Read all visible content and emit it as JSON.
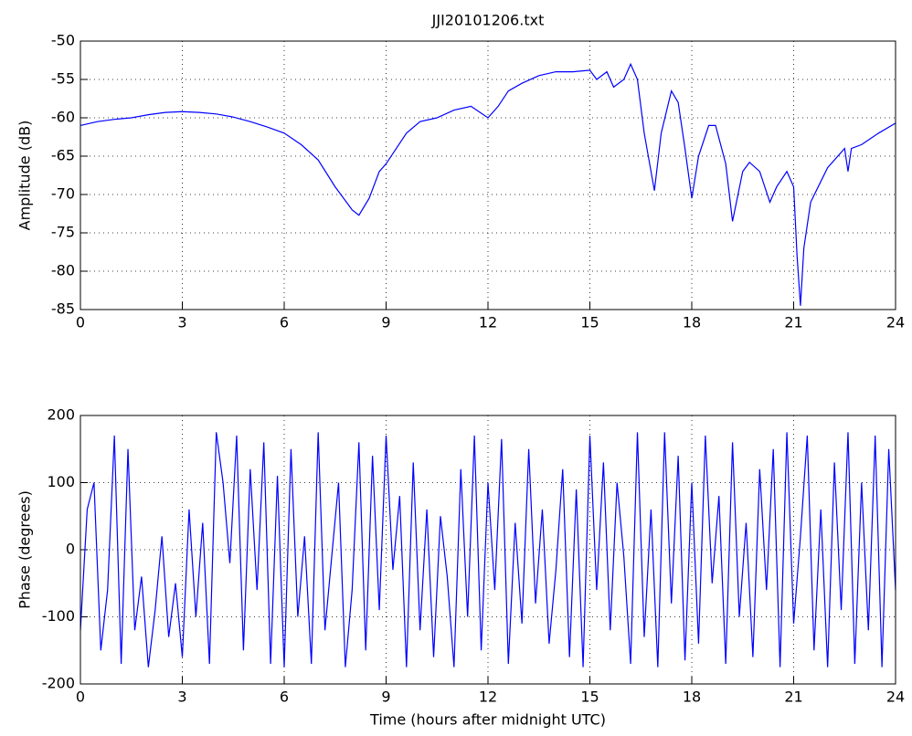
{
  "chart_data": [
    {
      "type": "line",
      "title": "JJI20101206.txt",
      "ylabel": "Amplitude (dB)",
      "color": "#0000ff",
      "grid": true,
      "xlim": [
        0,
        24
      ],
      "xticks": [
        0,
        3,
        6,
        9,
        12,
        15,
        18,
        21,
        24
      ],
      "ylim": [
        -85,
        -50
      ],
      "yticks": [
        -50,
        -55,
        -60,
        -65,
        -70,
        -75,
        -80,
        -85
      ],
      "x": [
        0,
        0.5,
        1,
        1.5,
        2,
        2.5,
        3,
        3.5,
        4,
        4.5,
        5,
        5.5,
        6,
        6.5,
        7,
        7.5,
        8,
        8.2,
        8.5,
        8.8,
        9,
        9.3,
        9.6,
        10,
        10.5,
        11,
        11.5,
        12,
        12.3,
        12.6,
        13,
        13.5,
        14,
        14.5,
        15,
        15.2,
        15.5,
        15.7,
        16,
        16.2,
        16.4,
        16.6,
        16.8,
        16.9,
        17.1,
        17.4,
        17.6,
        17.8,
        18,
        18.2,
        18.5,
        18.7,
        19,
        19.2,
        19.5,
        19.7,
        20,
        20.3,
        20.5,
        20.8,
        21,
        21.1,
        21.2,
        21.3,
        21.5,
        22,
        22.5,
        22.6,
        22.7,
        23,
        23.5,
        24
      ],
      "values": [
        -61,
        -60.5,
        -60.2,
        -60,
        -59.6,
        -59.3,
        -59.2,
        -59.3,
        -59.5,
        -59.9,
        -60.5,
        -61.2,
        -62,
        -63.5,
        -65.5,
        -69,
        -72,
        -72.7,
        -70.5,
        -67,
        -66,
        -64,
        -62,
        -60.5,
        -60,
        -59,
        -58.5,
        -60,
        -58.5,
        -56.5,
        -55.5,
        -54.5,
        -54,
        -54,
        -53.8,
        -55,
        -54,
        -56,
        -55,
        -53,
        -55,
        -62,
        -67,
        -69.5,
        -62,
        -56.5,
        -58,
        -64,
        -70.5,
        -65,
        -61,
        -61,
        -66,
        -73.5,
        -67,
        -65.8,
        -67,
        -71,
        -69,
        -67,
        -69,
        -78,
        -84.5,
        -77,
        -71,
        -66.5,
        -64,
        -67,
        -64,
        -63.5,
        -62,
        -60.7
      ]
    },
    {
      "type": "line",
      "xlabel": "Time (hours after midnight UTC)",
      "ylabel": "Phase (degrees)",
      "color": "#0000ff",
      "grid": true,
      "xlim": [
        0,
        24
      ],
      "xticks": [
        0,
        3,
        6,
        9,
        12,
        15,
        18,
        21,
        24
      ],
      "ylim": [
        -200,
        200
      ],
      "yticks": [
        200,
        100,
        0,
        -100,
        -200
      ],
      "x": [
        0,
        0.2,
        0.4,
        0.6,
        0.8,
        1,
        1.2,
        1.4,
        1.6,
        1.8,
        2,
        2.2,
        2.4,
        2.6,
        2.8,
        3,
        3.2,
        3.4,
        3.6,
        3.8,
        4,
        4.2,
        4.4,
        4.6,
        4.8,
        5,
        5.2,
        5.4,
        5.6,
        5.8,
        6,
        6.2,
        6.4,
        6.6,
        6.8,
        7,
        7.2,
        7.4,
        7.6,
        7.8,
        8,
        8.2,
        8.4,
        8.6,
        8.8,
        9,
        9.2,
        9.4,
        9.6,
        9.8,
        10,
        10.2,
        10.4,
        10.6,
        10.8,
        11,
        11.2,
        11.4,
        11.6,
        11.8,
        12,
        12.2,
        12.4,
        12.6,
        12.8,
        13,
        13.2,
        13.4,
        13.6,
        13.8,
        14,
        14.2,
        14.4,
        14.6,
        14.8,
        15,
        15.2,
        15.4,
        15.6,
        15.8,
        16,
        16.2,
        16.4,
        16.6,
        16.8,
        17,
        17.2,
        17.4,
        17.6,
        17.8,
        18,
        18.2,
        18.4,
        18.6,
        18.8,
        19,
        19.2,
        19.4,
        19.6,
        19.8,
        20,
        20.2,
        20.4,
        20.6,
        20.8,
        21,
        21.2,
        21.4,
        21.6,
        21.8,
        22,
        22.2,
        22.4,
        22.6,
        22.8,
        23,
        23.2,
        23.4,
        23.6,
        23.8,
        24
      ],
      "values": [
        -120,
        60,
        100,
        -150,
        -60,
        170,
        -170,
        150,
        -120,
        -40,
        -175,
        -90,
        20,
        -130,
        -50,
        -160,
        60,
        -100,
        40,
        -170,
        175,
        100,
        -20,
        170,
        -150,
        120,
        -60,
        160,
        -170,
        110,
        -175,
        150,
        -100,
        20,
        -170,
        175,
        -120,
        -10,
        100,
        -175,
        -60,
        160,
        -150,
        140,
        -90,
        170,
        -30,
        80,
        -175,
        130,
        -120,
        60,
        -160,
        50,
        -40,
        -175,
        120,
        -100,
        170,
        -150,
        100,
        -60,
        165,
        -170,
        40,
        -110,
        150,
        -80,
        60,
        -140,
        -30,
        120,
        -160,
        90,
        -175,
        170,
        -60,
        130,
        -120,
        100,
        -10,
        -170,
        175,
        -130,
        60,
        -175,
        175,
        -80,
        140,
        -165,
        100,
        -140,
        170,
        -50,
        80,
        -170,
        160,
        -100,
        40,
        -160,
        120,
        -60,
        150,
        -175,
        175,
        -110,
        20,
        170,
        -150,
        60,
        -175,
        130,
        -90,
        175,
        -170,
        100,
        -120,
        170,
        -175,
        150,
        -60
      ]
    }
  ]
}
